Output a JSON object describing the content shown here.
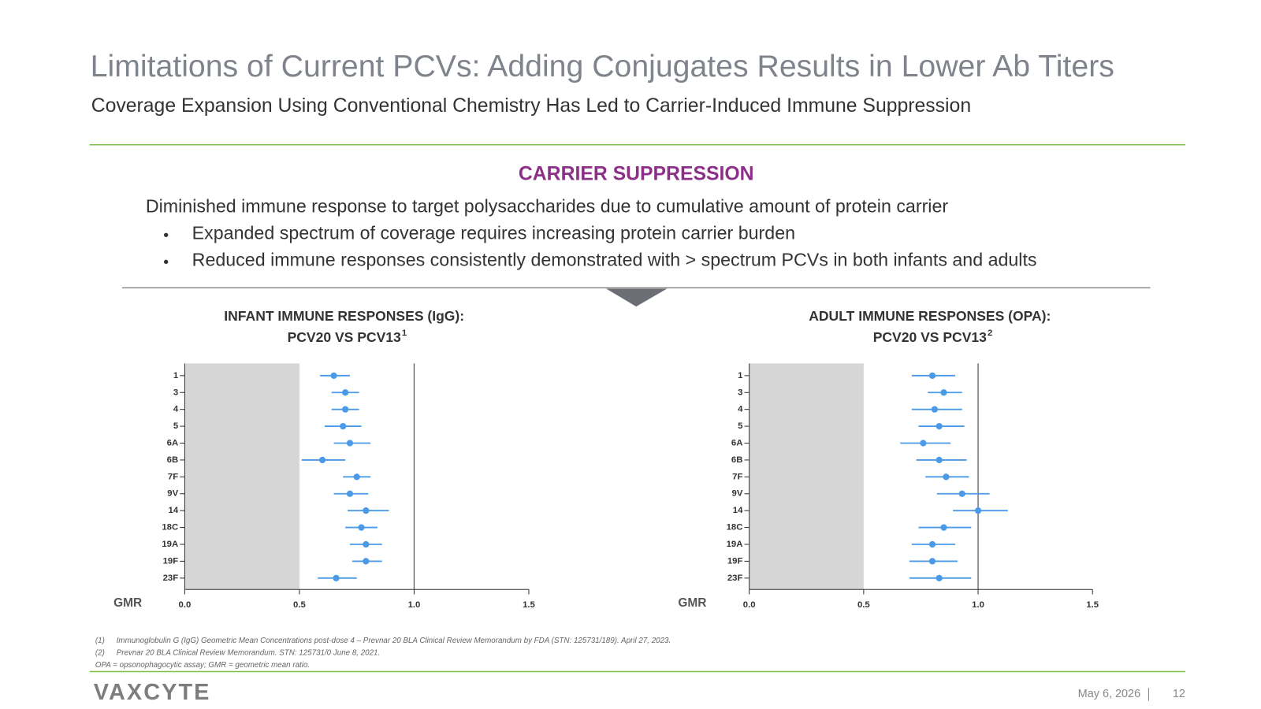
{
  "slide": {
    "title": "Limitations of Current PCVs: Adding Conjugates Results in Lower Ab Titers",
    "subtitle": "Coverage Expansion Using Conventional Chemistry Has Led to Carrier-Induced Immune Suppression",
    "section_heading": "CARRIER SUPPRESSION",
    "body": "Diminished immune response to target polysaccharides due to cumulative amount of protein carrier",
    "bullets": [
      "Expanded spectrum of coverage requires increasing protein carrier burden",
      "Reduced immune responses consistently demonstrated with > spectrum PCVs in both infants and adults"
    ],
    "footnotes": [
      {
        "number": "(1)",
        "text": "Immunoglobulin G (IgG) Geometric Mean Concentrations post-dose 4 – Prevnar 20 BLA Clinical Review Memorandum by FDA (STN: 125731/189). April 27, 2023."
      },
      {
        "number": "(2)",
        "text": "Prevnar 20 BLA Clinical Review Memorandum.  STN: 125731/0 June 8, 2021."
      },
      {
        "number": "",
        "text": "OPA = opsonophagocytic assay; GMR = geometric mean ratio."
      }
    ],
    "logo": "VAXCYTE",
    "date": "May 6, 2026",
    "page_number": "12"
  },
  "chart_data": [
    {
      "type": "forest",
      "title": "INFANT IMMUNE RESPONSES (IgG):",
      "subtitle": "PCV20 VS PCV13",
      "title_superscript": "1",
      "x_label": "GMR",
      "categories": [
        "1",
        "3",
        "4",
        "5",
        "6A",
        "6B",
        "7F",
        "9V",
        "14",
        "18C",
        "19A",
        "19F",
        "23F"
      ],
      "values": [
        0.65,
        0.7,
        0.7,
        0.69,
        0.72,
        0.6,
        0.75,
        0.72,
        0.79,
        0.77,
        0.79,
        0.79,
        0.66
      ],
      "lower": [
        0.59,
        0.64,
        0.64,
        0.61,
        0.65,
        0.51,
        0.69,
        0.65,
        0.71,
        0.7,
        0.72,
        0.73,
        0.58
      ],
      "upper": [
        0.72,
        0.76,
        0.76,
        0.77,
        0.81,
        0.7,
        0.81,
        0.8,
        0.89,
        0.84,
        0.86,
        0.86,
        0.75
      ],
      "color": "#4a9ae8",
      "xlim": [
        0,
        1.5
      ],
      "xticks": [
        {
          "value": 0,
          "label": "0.0"
        },
        0.5,
        {
          "value": 1,
          "label": "1.0"
        },
        1.5
      ],
      "shaded_range": [
        0,
        0.5
      ],
      "shade_color": "#d6d6d6",
      "reference_line": 1
    },
    {
      "type": "forest",
      "title": "ADULT IMMUNE RESPONSES (OPA):",
      "subtitle": "PCV20 VS PCV13",
      "title_superscript": "2",
      "x_label": "GMR",
      "categories": [
        "1",
        "3",
        "4",
        "5",
        "6A",
        "6B",
        "7F",
        "9V",
        "14",
        "18C",
        "19A",
        "19F",
        "23F"
      ],
      "values": [
        0.8,
        0.85,
        0.81,
        0.83,
        0.76,
        0.83,
        0.86,
        0.93,
        1.0,
        0.85,
        0.8,
        0.8,
        0.83
      ],
      "lower": [
        0.71,
        0.78,
        0.71,
        0.74,
        0.66,
        0.73,
        0.77,
        0.82,
        0.89,
        0.74,
        0.71,
        0.7,
        0.7
      ],
      "upper": [
        0.9,
        0.93,
        0.93,
        0.94,
        0.88,
        0.95,
        0.96,
        1.05,
        1.13,
        0.97,
        0.9,
        0.91,
        0.97
      ],
      "color": "#4a9ae8",
      "xlim": [
        0,
        1.5
      ],
      "xticks": [
        {
          "value": 0,
          "label": "0.0"
        },
        0.5,
        {
          "value": 1,
          "label": "1.0"
        },
        1.5
      ],
      "shaded_range": [
        0,
        0.5
      ],
      "shade_color": "#d6d6d6",
      "reference_line": 1
    }
  ]
}
